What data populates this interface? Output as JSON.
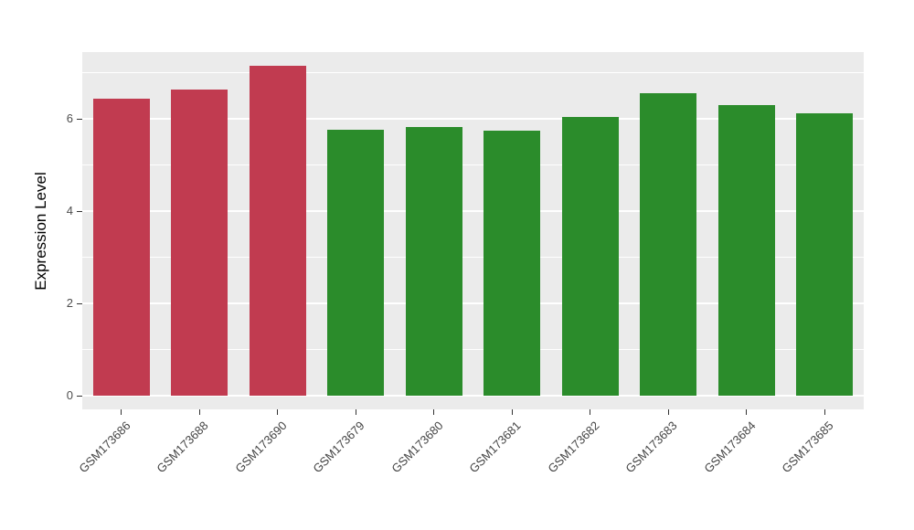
{
  "chart_data": {
    "type": "bar",
    "title": "",
    "xlabel": "",
    "ylabel": "Expression Level",
    "categories": [
      "GSM173686",
      "GSM173688",
      "GSM173690",
      "GSM173679",
      "GSM173680",
      "GSM173681",
      "GSM173682",
      "GSM173683",
      "GSM173684",
      "GSM173685"
    ],
    "values": [
      6.44,
      6.63,
      7.15,
      5.77,
      5.83,
      5.75,
      6.04,
      6.55,
      6.31,
      6.13
    ],
    "bar_colors": [
      "#C13B50",
      "#C13B50",
      "#C13B50",
      "#2B8C2B",
      "#2B8C2B",
      "#2B8C2B",
      "#2B8C2B",
      "#2B8C2B",
      "#2B8C2B",
      "#2B8C2B"
    ],
    "ylim": [
      0,
      7.45
    ],
    "yticks_major": [
      0,
      2,
      4,
      6
    ],
    "yticks_minor": [
      1,
      3,
      5,
      7
    ],
    "ytick_labels": [
      "0",
      "2",
      "4",
      "6"
    ],
    "grid": "on",
    "legend": "none",
    "panel_bg": "#EBEBEB",
    "grid_color": "#FFFFFF",
    "group_colors": {
      "red_group": "#C13B50",
      "green_group": "#2B8C2B"
    }
  }
}
